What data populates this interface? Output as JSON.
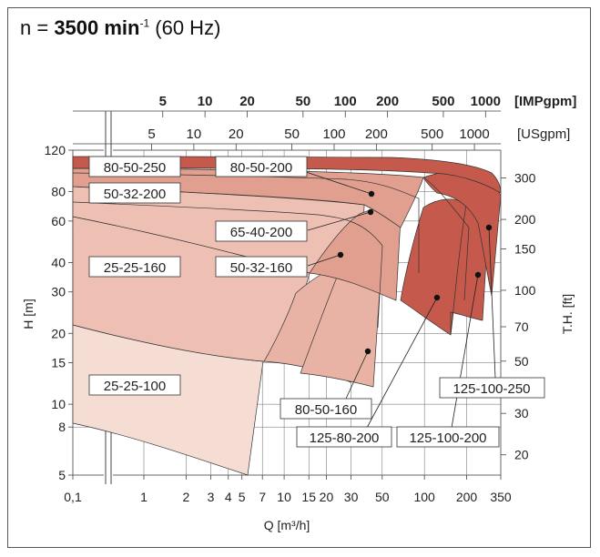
{
  "header": {
    "n_prefix": "n = ",
    "speed_value": "3500 min",
    "speed_exp": "-1",
    "freq": " (60 Hz)"
  },
  "chart_data": {
    "type": "area",
    "xlabel": "Q [m³/h]",
    "ylabel": "H [m]",
    "ylabel_right": "T.H. [ft]",
    "x_scale": "log",
    "y_scale": "log",
    "x_ticks": [
      0.1,
      1,
      2,
      3,
      4,
      5,
      7,
      10,
      15,
      20,
      30,
      50,
      100,
      200,
      350
    ],
    "x_tick_labels": [
      "0,1",
      "1",
      "2",
      "3",
      "4",
      "5",
      "7",
      "10",
      "15",
      "20",
      "30",
      "50",
      "100",
      "200",
      "350"
    ],
    "y_ticks": [
      5,
      8,
      10,
      15,
      20,
      30,
      40,
      60,
      80,
      120
    ],
    "right_ticks": [
      20,
      30,
      50,
      70,
      100,
      150,
      200,
      300
    ],
    "top_axis_impgpm": {
      "unit": "[IMPgpm]",
      "ticks": [
        5,
        10,
        20,
        50,
        100,
        200,
        500,
        1000
      ]
    },
    "top_axis_usgpm": {
      "unit": "[USgpm]",
      "ticks": [
        5,
        10,
        20,
        50,
        100,
        200,
        500,
        1000
      ]
    },
    "axis_break": "between 0,1 and 1 m³/h",
    "series": [
      {
        "name": "80-50-250",
        "fill": "#c55a4c",
        "q_max": 330,
        "h_shutoff": 112
      },
      {
        "name": "125-100-250",
        "fill": "#c55a4c",
        "q_max": 330,
        "h_min": 27
      },
      {
        "name": "125-100-200",
        "fill": "#c55a4c",
        "q_max": 300,
        "h_min": 20
      },
      {
        "name": "125-80-200",
        "fill": "#c55a4c",
        "q_max": 200,
        "h_min": 20
      },
      {
        "name": "80-50-200",
        "fill": "#e1a08f",
        "q_max": 100,
        "h_shutoff": 91
      },
      {
        "name": "65-40-200",
        "fill": "#e1a08f",
        "q_max": 80,
        "h_min": 24
      },
      {
        "name": "50-32-200",
        "fill": "#eec0b3",
        "q_max": 45,
        "h_shutoff": 84
      },
      {
        "name": "50-32-160",
        "fill": "#e8b3a4",
        "q_max": 50,
        "h_min": 14
      },
      {
        "name": "80-50-160",
        "fill": "#e8b3a4",
        "q_max": 80,
        "h_min": 12
      },
      {
        "name": "25-25-160",
        "fill": "#eec0b3",
        "q_max": 28,
        "h_min": 15
      },
      {
        "name": "25-25-100",
        "fill": "#f6ddd3",
        "q_max": 5.6,
        "h_min": 5
      }
    ]
  },
  "labels": {
    "l_80_50_250": "80-50-250",
    "l_80_50_200": "80-50-200",
    "l_50_32_200": "50-32-200",
    "l_65_40_200": "65-40-200",
    "l_25_25_160": "25-25-160",
    "l_50_32_160": "50-32-160",
    "l_25_25_100": "25-25-100",
    "l_80_50_160": "80-50-160",
    "l_125_80_200": "125-80-200",
    "l_125_100_200": "125-100-200",
    "l_125_100_250": "125-100-250"
  }
}
